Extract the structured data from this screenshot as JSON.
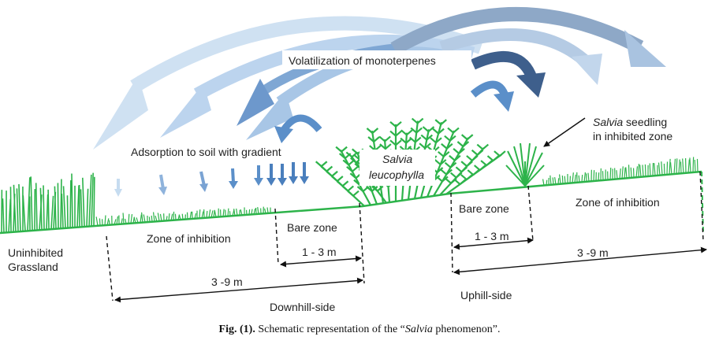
{
  "labels": {
    "volatilization": "Volatilization of monoterpenes",
    "adsorption": "Adsorption to soil with gradient",
    "salvia_plant_1": "Salvia",
    "salvia_plant_2": "leucophylla",
    "seedling_italic": "Salvia",
    "seedling_rest": " seedling",
    "seedling_line2": "in inhibited zone",
    "zone_inhibition_left": "Zone of inhibition",
    "zone_inhibition_right": "Zone of inhibition",
    "bare_zone_left": "Bare zone",
    "bare_zone_right": "Bare zone",
    "uninhibited_1": "Uninhibited",
    "uninhibited_2": "Grassland",
    "range_1_3_left": "1 - 3 m",
    "range_1_3_right": "1 - 3 m",
    "range_3_9_left": "3 -9 m",
    "range_3_9_right": "3 -9 m",
    "downhill": "Downhill-side",
    "uphill": "Uphill-side"
  },
  "caption": {
    "fig_label": "Fig. (1).",
    "text_before": " Schematic representation of the “",
    "text_italic": "Salvia",
    "text_after": " phenomenon”."
  },
  "colors": {
    "grass": "#2db34a",
    "arrow_light": "#c6dcf0",
    "arrow_mid": "#5b8fc9",
    "arrow_dark": "#3a5f8f",
    "dimension_line": "#111111"
  }
}
